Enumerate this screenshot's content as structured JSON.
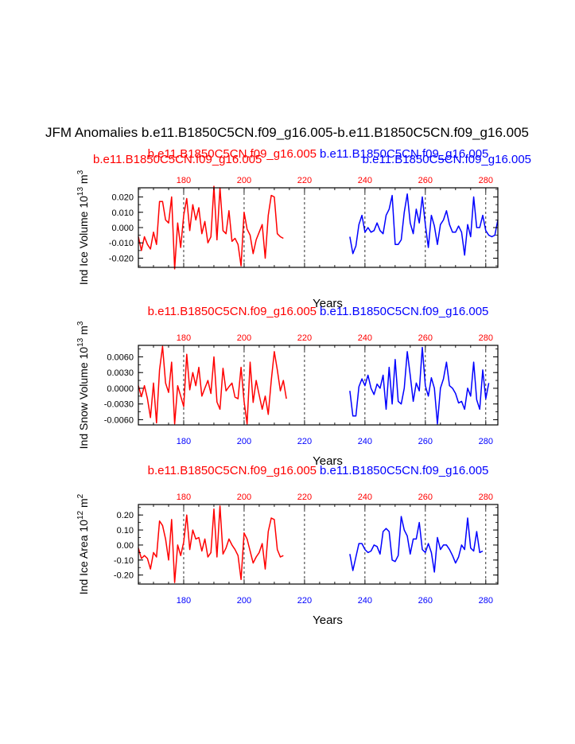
{
  "title": "JFM Anomalies b.e11.B1850C5CN.f09_g16.005-b.e11.B1850C5CN.f09_g16.005",
  "colors": {
    "case1": "#ff0000",
    "case2": "#0000ff",
    "axis": "#000000"
  },
  "x_ticks": [
    180,
    200,
    220,
    240,
    260,
    280
  ],
  "xlabel": "Years",
  "chart_data": [
    {
      "type": "line",
      "name": "ind-ice-volume",
      "ylabel": "Ind Ice Volume 10",
      "ylabel_exp": "13",
      "ylabel_unit": " m",
      "ylabel_unit_exp": "3",
      "xlim": [
        165,
        284
      ],
      "ylim": [
        -0.026,
        0.026
      ],
      "yticks": [
        0.02,
        0.01,
        0.0,
        -0.01,
        -0.02
      ],
      "ytick_labels": [
        "0.020",
        "0.010",
        "0.000",
        "-0.010",
        "-0.020"
      ],
      "show_xlabel": true,
      "case_labels": [
        {
          "text": "b.e11.B1850C5CN.f09_g16.005",
          "series": 1,
          "row": "upper",
          "anchor": "left"
        },
        {
          "text": "b.e11.B1850C5CN.f09_g16.005",
          "series": 1,
          "row": "lower",
          "anchor": "right"
        },
        {
          "text": "b.e11.B1850C5CN.f09_g16.005",
          "series": 0,
          "row": "upper",
          "anchor": "right"
        },
        {
          "text": "b.e11.B1850C5CN.f09_g16.005",
          "series": 0,
          "row": "lower",
          "anchor": "left"
        }
      ],
      "top_tick_color": "case1",
      "bottom_tick_labels": false,
      "series": [
        {
          "name": "b.e11.B1850C5CN.f09_g16.005",
          "color": "case1",
          "x_start": 165,
          "values": [
            -0.006,
            -0.015,
            -0.006,
            -0.011,
            -0.014,
            -0.003,
            -0.011,
            0.017,
            0.017,
            0.005,
            0.003,
            0.02,
            -0.027,
            0.003,
            -0.013,
            0.008,
            0.019,
            -0.002,
            0.015,
            0.005,
            0.013,
            -0.004,
            0.004,
            -0.01,
            -0.006,
            0.027,
            -0.008,
            0.026,
            -0.002,
            -0.004,
            0.011,
            -0.009,
            -0.007,
            -0.011,
            -0.025,
            0.01,
            -0.001,
            -0.005,
            -0.017,
            -0.008,
            -0.003,
            0.002,
            -0.02,
            0.008,
            0.021,
            0.02,
            -0.004,
            -0.006,
            -0.007
          ]
        },
        {
          "name": "b.e11.B1850C5CN.f09_g16.005",
          "color": "case2",
          "x_start": 235,
          "values": [
            -0.006,
            -0.017,
            -0.012,
            0.002,
            0.008,
            -0.003,
            0.0,
            -0.003,
            -0.002,
            0.003,
            -0.002,
            -0.004,
            0.008,
            0.012,
            0.021,
            -0.011,
            -0.011,
            -0.008,
            0.01,
            0.022,
            0.003,
            -0.004,
            0.012,
            0.003,
            0.02,
            0.002,
            -0.013,
            0.008,
            0.001,
            -0.011,
            0.002,
            0.005,
            0.011,
            0.002,
            -0.003,
            -0.003,
            0.001,
            -0.003,
            -0.018,
            0.002,
            -0.006,
            0.02,
            0.0,
            0.0,
            0.008,
            -0.002,
            -0.005,
            -0.006,
            -0.005,
            0.005
          ]
        }
      ]
    },
    {
      "type": "line",
      "name": "ind-snow-volume",
      "ylabel": "Ind Snow Volume 10",
      "ylabel_exp": "13",
      "ylabel_unit": " m",
      "ylabel_unit_exp": "3",
      "xlim": [
        165,
        284
      ],
      "ylim": [
        -0.007,
        0.0082
      ],
      "yticks": [
        0.006,
        0.003,
        0.0,
        -0.003,
        -0.006
      ],
      "ytick_labels": [
        "0.0060",
        "0.0030",
        "0.0000",
        "-0.0030",
        "-0.0060"
      ],
      "show_xlabel": true,
      "case_labels": [
        {
          "text": "b.e11.B1850C5CN.f09_g16.005",
          "series": 0,
          "row": "upper",
          "anchor": "right"
        },
        {
          "text": "b.e11.B1850C5CN.f09_g16.005",
          "series": 1,
          "row": "upper",
          "anchor": "left"
        }
      ],
      "top_tick_color": "case1",
      "bottom_tick_labels": true,
      "series": [
        {
          "name": "b.e11.B1850C5CN.f09_g16.005",
          "color": "case1",
          "x_start": 165,
          "values": [
            0.0005,
            -0.0016,
            0.0005,
            -0.002,
            -0.0056,
            0.001,
            -0.0066,
            0.0035,
            0.008,
            0.001,
            -0.0008,
            0.005,
            -0.0068,
            0.0005,
            -0.0015,
            -0.0035,
            0.0065,
            -0.0003,
            0.003,
            0.0005,
            0.004,
            -0.0015,
            0.0,
            0.0015,
            -0.001,
            0.006,
            -0.0026,
            -0.004,
            0.0038,
            -0.0005,
            0.0003,
            0.001,
            -0.0017,
            -0.002,
            0.004,
            -0.0025,
            -0.0068,
            0.005,
            -0.0027,
            0.0015,
            -0.0013,
            -0.004,
            -0.0015,
            -0.005,
            0.0015,
            0.007,
            0.0035,
            -0.0005,
            0.0015,
            -0.002
          ]
        },
        {
          "name": "b.e11.B1850C5CN.f09_g16.005",
          "color": "case2",
          "x_start": 235,
          "values": [
            -0.0005,
            -0.0053,
            -0.0053,
            0.0003,
            0.0018,
            0.0005,
            0.0025,
            0.0,
            -0.0012,
            0.0008,
            0.0,
            0.0025,
            -0.004,
            0.004,
            -0.003,
            0.0055,
            -0.0025,
            -0.003,
            0.0,
            0.007,
            0.0025,
            -0.0025,
            0.001,
            -0.0005,
            0.0078,
            0.0005,
            -0.0015,
            0.002,
            0.0,
            -0.0068,
            0.0,
            0.0018,
            0.005,
            0.0005,
            0.0,
            -0.001,
            -0.0028,
            -0.0025,
            -0.004,
            0.0,
            -0.0015,
            0.005,
            -0.0022,
            -0.004,
            0.0035,
            -0.002,
            0.001
          ]
        }
      ]
    },
    {
      "type": "line",
      "name": "ind-ice-area",
      "ylabel": "Ind Ice Area 10",
      "ylabel_exp": "12",
      "ylabel_unit": " m",
      "ylabel_unit_exp": "2",
      "xlim": [
        165,
        284
      ],
      "ylim": [
        -0.26,
        0.27
      ],
      "yticks": [
        0.2,
        0.1,
        0.0,
        -0.1,
        -0.2
      ],
      "ytick_labels": [
        "0.20",
        "0.10",
        "0.00",
        "-0.10",
        "-0.20"
      ],
      "show_xlabel": true,
      "case_labels": [
        {
          "text": "b.e11.B1850C5CN.f09_g16.005",
          "series": 0,
          "row": "upper",
          "anchor": "right"
        },
        {
          "text": "b.e11.B1850C5CN.f09_g16.005",
          "series": 1,
          "row": "upper",
          "anchor": "left"
        }
      ],
      "top_tick_color": "case1",
      "bottom_tick_labels": true,
      "series": [
        {
          "name": "b.e11.B1850C5CN.f09_g16.005",
          "color": "case1",
          "x_start": 165,
          "values": [
            -0.02,
            -0.09,
            -0.07,
            -0.09,
            -0.16,
            -0.05,
            -0.08,
            0.16,
            0.13,
            0.04,
            -0.1,
            0.17,
            -0.25,
            0.0,
            -0.07,
            0.02,
            0.2,
            -0.03,
            0.1,
            0.04,
            0.05,
            -0.04,
            0.04,
            -0.08,
            -0.05,
            0.24,
            -0.08,
            0.26,
            -0.06,
            -0.02,
            0.04,
            0.0,
            -0.03,
            -0.07,
            -0.23,
            0.08,
            0.04,
            -0.04,
            -0.12,
            -0.08,
            -0.05,
            0.01,
            -0.16,
            0.09,
            0.18,
            0.17,
            -0.03,
            -0.08,
            -0.07
          ]
        },
        {
          "name": "b.e11.B1850C5CN.f09_g16.005",
          "color": "case2",
          "x_start": 235,
          "values": [
            -0.06,
            -0.17,
            -0.08,
            0.01,
            0.01,
            -0.03,
            -0.05,
            -0.04,
            0.0,
            -0.01,
            -0.06,
            0.09,
            0.11,
            0.09,
            -0.1,
            -0.11,
            -0.07,
            0.19,
            0.1,
            0.06,
            -0.06,
            0.04,
            0.04,
            0.15,
            -0.03,
            -0.05,
            0.01,
            -0.05,
            -0.18,
            0.05,
            -0.03,
            0.0,
            0.0,
            -0.03,
            -0.07,
            -0.12,
            -0.08,
            0.0,
            -0.03,
            0.18,
            -0.02,
            -0.04,
            0.09,
            -0.05,
            -0.04
          ]
        }
      ]
    }
  ]
}
